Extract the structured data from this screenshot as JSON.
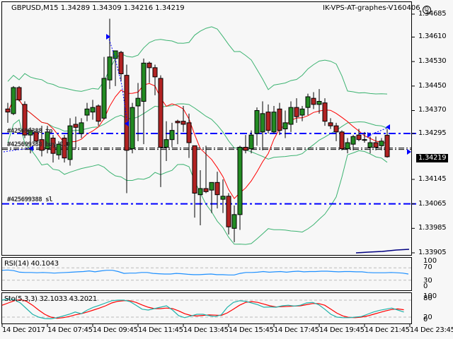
{
  "header": {
    "symbol_info": "GBPUSD,M15  1.34289 1.34309 1.34216 1.34219",
    "expert_label": "IK-VPS-AT-graphes-V160406",
    "expert_icon": "smiley-icon"
  },
  "price_axis": {
    "labels": [
      "1.34685",
      "1.34610",
      "1.34530",
      "1.34450",
      "1.34370",
      "1.34295",
      "1.34145",
      "1.34065",
      "1.33985",
      "1.33905"
    ],
    "current_price": "1.34219"
  },
  "orders": {
    "tp_label": "#425699388 tp",
    "buy_label": "#425699388 buy 0.0",
    "sl_label": "#425699388 sl"
  },
  "rsi": {
    "label": "RSI(14) 40.1043",
    "scale": [
      "100",
      "70",
      "30",
      "0"
    ]
  },
  "stochastic": {
    "label": "Sto(5,3,3) 32.1033 43.2021",
    "scale": [
      "100",
      "80",
      "20",
      "0"
    ]
  },
  "time_axis": {
    "labels": [
      "14 Dec 2017",
      "14 Dec 07:45",
      "14 Dec 09:45",
      "14 Dec 11:45",
      "14 Dec 13:45",
      "14 Dec 15:45",
      "14 Dec 17:45",
      "14 Dec 19:45",
      "14 Dec 21:45",
      "14 Dec 23:45"
    ]
  },
  "colors": {
    "bull": "#228B22",
    "bear": "#B22222",
    "bollinger": "#3CB371",
    "ma": "#FF0000",
    "order_line": "#0000FF",
    "rsi_line": "#1E90FF",
    "sto_main": "#20B2AA",
    "sto_signal": "#FF0000"
  },
  "chart_data": {
    "type": "candlestick",
    "title": "GBPUSD,M15",
    "ylim": [
      1.33905,
      1.34685
    ],
    "x_ticks": [
      "14 Dec 2017",
      "14 Dec 07:45",
      "14 Dec 09:45",
      "14 Dec 11:45",
      "14 Dec 13:45",
      "14 Dec 15:45",
      "14 Dec 17:45",
      "14 Dec 19:45",
      "14 Dec 21:45",
      "14 Dec 23:45"
    ],
    "horizontal_lines": {
      "tp": 1.34295,
      "entry": 1.34245,
      "sl": 1.34065
    },
    "candles": [
      {
        "o": 1.34375,
        "h": 1.34395,
        "l": 1.3433,
        "c": 1.34365
      },
      {
        "o": 1.3436,
        "h": 1.3445,
        "l": 1.34355,
        "c": 1.34445
      },
      {
        "o": 1.34445,
        "h": 1.3445,
        "l": 1.344,
        "c": 1.34405
      },
      {
        "o": 1.3439,
        "h": 1.344,
        "l": 1.3428,
        "c": 1.3429
      },
      {
        "o": 1.3429,
        "h": 1.34315,
        "l": 1.3423,
        "c": 1.34305
      },
      {
        "o": 1.343,
        "h": 1.3431,
        "l": 1.3426,
        "c": 1.3427
      },
      {
        "o": 1.34275,
        "h": 1.3432,
        "l": 1.3422,
        "c": 1.3424
      },
      {
        "o": 1.34245,
        "h": 1.3432,
        "l": 1.3423,
        "c": 1.343
      },
      {
        "o": 1.3428,
        "h": 1.3429,
        "l": 1.342,
        "c": 1.3423
      },
      {
        "o": 1.34225,
        "h": 1.3427,
        "l": 1.3421,
        "c": 1.3426
      },
      {
        "o": 1.3428,
        "h": 1.3429,
        "l": 1.342,
        "c": 1.34215
      },
      {
        "o": 1.3421,
        "h": 1.34345,
        "l": 1.3419,
        "c": 1.3432
      },
      {
        "o": 1.34325,
        "h": 1.3435,
        "l": 1.34245,
        "c": 1.34315
      },
      {
        "o": 1.34295,
        "h": 1.34345,
        "l": 1.3428,
        "c": 1.3433
      },
      {
        "o": 1.34355,
        "h": 1.34395,
        "l": 1.34335,
        "c": 1.34375
      },
      {
        "o": 1.34365,
        "h": 1.34405,
        "l": 1.3434,
        "c": 1.3438
      },
      {
        "o": 1.34385,
        "h": 1.3439,
        "l": 1.3432,
        "c": 1.34335
      },
      {
        "o": 1.34345,
        "h": 1.34545,
        "l": 1.3434,
        "c": 1.34475
      },
      {
        "o": 1.3447,
        "h": 1.3467,
        "l": 1.3444,
        "c": 1.34545
      },
      {
        "o": 1.3454,
        "h": 1.34555,
        "l": 1.3445,
        "c": 1.34565
      },
      {
        "o": 1.3456,
        "h": 1.34565,
        "l": 1.34465,
        "c": 1.3449
      },
      {
        "o": 1.34485,
        "h": 1.3452,
        "l": 1.341,
        "c": 1.3424
      },
      {
        "o": 1.34245,
        "h": 1.34395,
        "l": 1.3423,
        "c": 1.3438
      },
      {
        "o": 1.34385,
        "h": 1.3446,
        "l": 1.3427,
        "c": 1.3441
      },
      {
        "o": 1.344,
        "h": 1.3454,
        "l": 1.3426,
        "c": 1.34525
      },
      {
        "o": 1.34525,
        "h": 1.3453,
        "l": 1.3446,
        "c": 1.3451
      },
      {
        "o": 1.3451,
        "h": 1.3452,
        "l": 1.3442,
        "c": 1.3448
      },
      {
        "o": 1.34475,
        "h": 1.34485,
        "l": 1.3412,
        "c": 1.3425
      },
      {
        "o": 1.3425,
        "h": 1.34335,
        "l": 1.34205,
        "c": 1.34275
      },
      {
        "o": 1.34275,
        "h": 1.3433,
        "l": 1.3425,
        "c": 1.34305
      },
      {
        "o": 1.34335,
        "h": 1.3434,
        "l": 1.3426,
        "c": 1.3433
      },
      {
        "o": 1.34335,
        "h": 1.34385,
        "l": 1.343,
        "c": 1.34325
      },
      {
        "o": 1.3433,
        "h": 1.3436,
        "l": 1.34215,
        "c": 1.34265
      },
      {
        "o": 1.34255,
        "h": 1.3425,
        "l": 1.3402,
        "c": 1.341
      },
      {
        "o": 1.34095,
        "h": 1.34175,
        "l": 1.33995,
        "c": 1.34115
      },
      {
        "o": 1.34115,
        "h": 1.34255,
        "l": 1.341,
        "c": 1.34105
      },
      {
        "o": 1.3411,
        "h": 1.34135,
        "l": 1.34035,
        "c": 1.34135
      },
      {
        "o": 1.34135,
        "h": 1.3417,
        "l": 1.3405,
        "c": 1.34095
      },
      {
        "o": 1.3408,
        "h": 1.34145,
        "l": 1.34035,
        "c": 1.3409
      },
      {
        "o": 1.3409,
        "h": 1.341,
        "l": 1.33965,
        "c": 1.3399
      },
      {
        "o": 1.33985,
        "h": 1.3406,
        "l": 1.3394,
        "c": 1.3403
      },
      {
        "o": 1.3403,
        "h": 1.34255,
        "l": 1.3398,
        "c": 1.3425
      },
      {
        "o": 1.3425,
        "h": 1.3429,
        "l": 1.3423,
        "c": 1.3424
      },
      {
        "o": 1.34245,
        "h": 1.34305,
        "l": 1.3423,
        "c": 1.3429
      },
      {
        "o": 1.34295,
        "h": 1.3438,
        "l": 1.34255,
        "c": 1.3437
      },
      {
        "o": 1.343,
        "h": 1.344,
        "l": 1.3424,
        "c": 1.3436
      },
      {
        "o": 1.34365,
        "h": 1.3439,
        "l": 1.34295,
        "c": 1.34305
      },
      {
        "o": 1.343,
        "h": 1.34385,
        "l": 1.34295,
        "c": 1.34365
      },
      {
        "o": 1.34375,
        "h": 1.34395,
        "l": 1.3429,
        "c": 1.34305
      },
      {
        "o": 1.3431,
        "h": 1.3437,
        "l": 1.3428,
        "c": 1.3433
      },
      {
        "o": 1.34325,
        "h": 1.344,
        "l": 1.343,
        "c": 1.3438
      },
      {
        "o": 1.3438,
        "h": 1.3441,
        "l": 1.3433,
        "c": 1.3435
      },
      {
        "o": 1.34355,
        "h": 1.34385,
        "l": 1.34335,
        "c": 1.34375
      },
      {
        "o": 1.3438,
        "h": 1.34425,
        "l": 1.34355,
        "c": 1.34415
      },
      {
        "o": 1.3441,
        "h": 1.3443,
        "l": 1.34375,
        "c": 1.3439
      },
      {
        "o": 1.3439,
        "h": 1.3444,
        "l": 1.3436,
        "c": 1.344
      },
      {
        "o": 1.34395,
        "h": 1.3441,
        "l": 1.3432,
        "c": 1.34335
      },
      {
        "o": 1.3433,
        "h": 1.34345,
        "l": 1.3431,
        "c": 1.3432
      },
      {
        "o": 1.3432,
        "h": 1.3433,
        "l": 1.3427,
        "c": 1.343
      },
      {
        "o": 1.343,
        "h": 1.34305,
        "l": 1.3424,
        "c": 1.34245
      },
      {
        "o": 1.34245,
        "h": 1.3428,
        "l": 1.3423,
        "c": 1.34265
      },
      {
        "o": 1.3426,
        "h": 1.3429,
        "l": 1.3424,
        "c": 1.34285
      },
      {
        "o": 1.3429,
        "h": 1.3431,
        "l": 1.3427,
        "c": 1.34275
      },
      {
        "o": 1.34275,
        "h": 1.343,
        "l": 1.34265,
        "c": 1.34275
      },
      {
        "o": 1.3425,
        "h": 1.34285,
        "l": 1.3423,
        "c": 1.34265
      },
      {
        "o": 1.34265,
        "h": 1.34285,
        "l": 1.3424,
        "c": 1.3425
      },
      {
        "o": 1.34255,
        "h": 1.3428,
        "l": 1.3424,
        "c": 1.3427
      },
      {
        "o": 1.34289,
        "h": 1.34309,
        "l": 1.34216,
        "c": 1.34219
      }
    ]
  }
}
